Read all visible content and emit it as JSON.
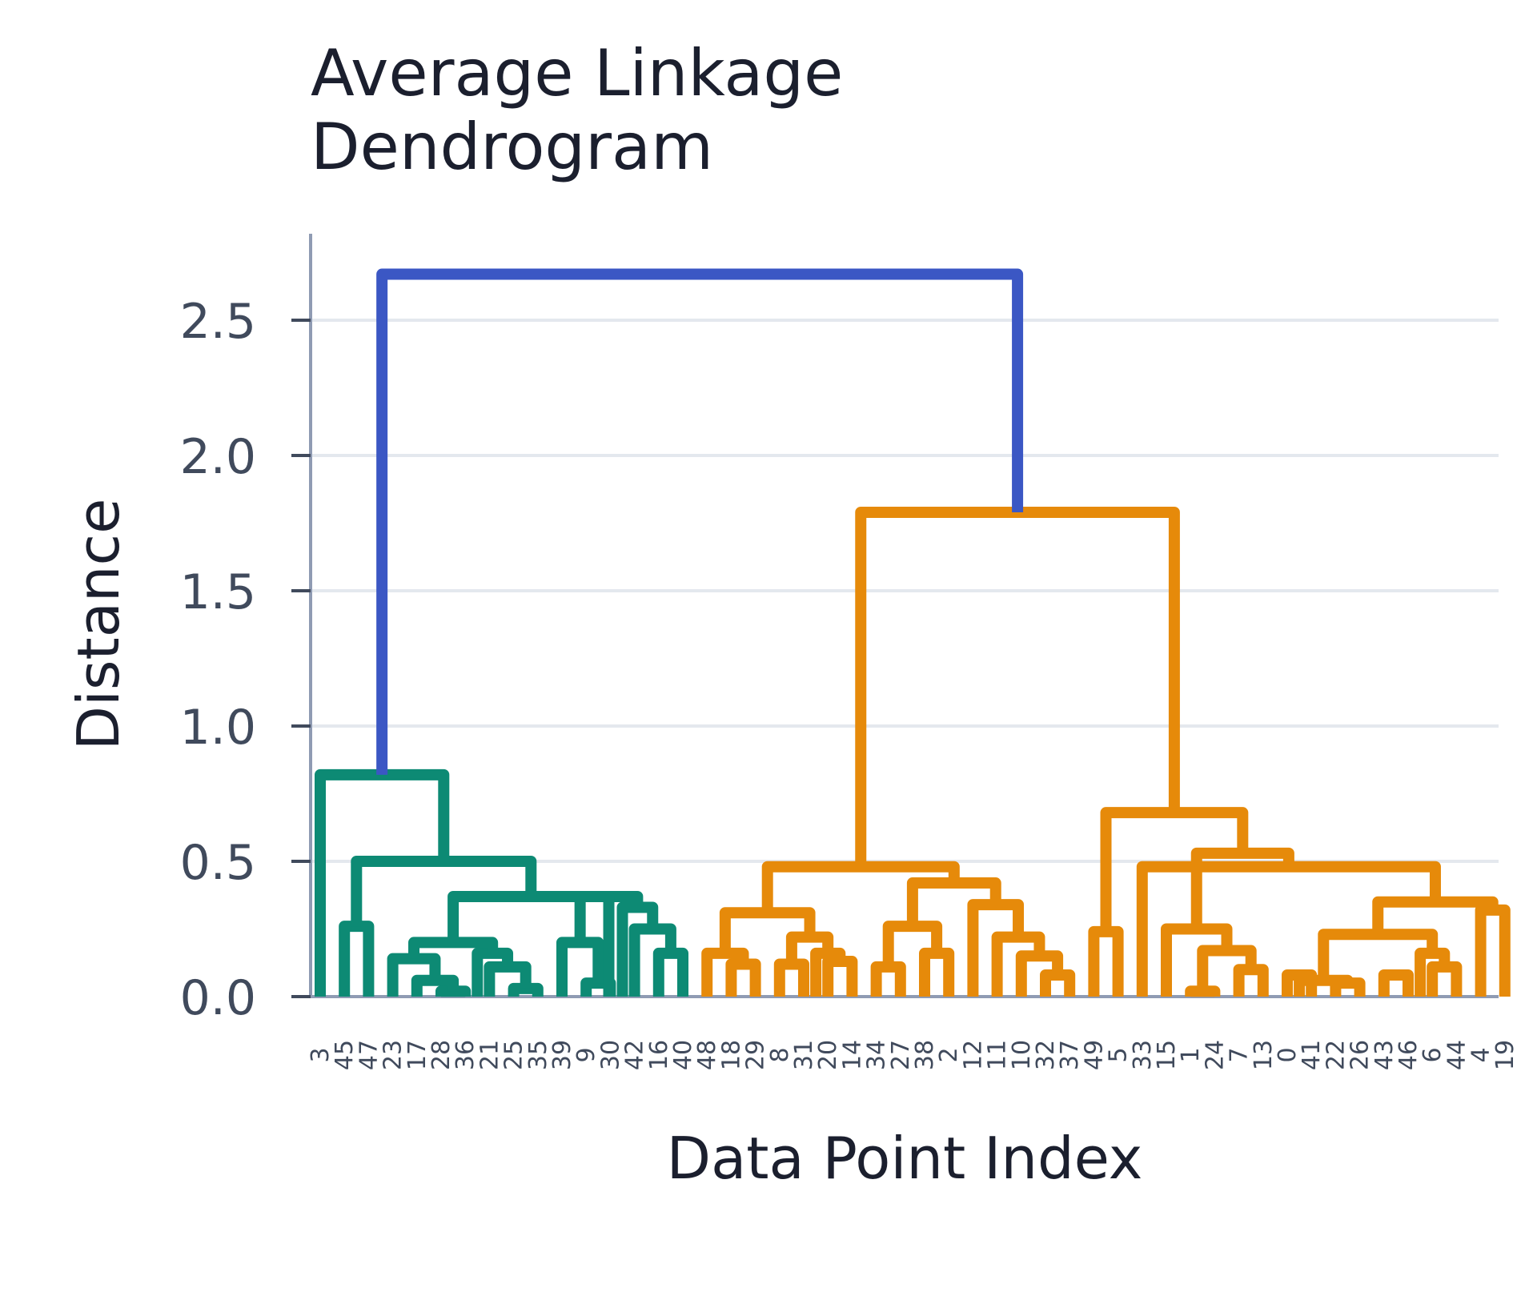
{
  "chart_data": {
    "type": "dendrogram",
    "title": [
      "Average Linkage",
      "Dendrogram"
    ],
    "xlabel": "Data Point Index",
    "ylabel": "Distance",
    "ylim": [
      0,
      2.8
    ],
    "yticks": [
      0.0,
      0.5,
      1.0,
      1.5,
      2.0,
      2.5
    ],
    "ytick_labels": [
      "0.0",
      "0.5",
      "1.0",
      "1.5",
      "2.0",
      "2.5"
    ],
    "grid": true,
    "colors": {
      "teal": "#0d8a74",
      "orange": "#e68a0a",
      "blue": "#3b57c4",
      "axis": "#8f9bb3",
      "grid": "#e4e8ee"
    },
    "leaves": [
      "3",
      "45",
      "47",
      "23",
      "17",
      "28",
      "36",
      "21",
      "25",
      "35",
      "39",
      "9",
      "30",
      "42",
      "16",
      "40",
      "48",
      "18",
      "29",
      "8",
      "31",
      "20",
      "14",
      "34",
      "27",
      "38",
      "2",
      "12",
      "11",
      "10",
      "32",
      "37",
      "49",
      "5",
      "33",
      "15",
      "1",
      "24",
      "7",
      "13",
      "0",
      "41",
      "22",
      "26",
      "43",
      "46",
      "6",
      "44",
      "4",
      "19"
    ],
    "links": [
      {
        "x": [
          1,
          2
        ],
        "h": 0.26,
        "color": "teal"
      },
      {
        "x": [
          5,
          6
        ],
        "h": 0.02,
        "color": "teal"
      },
      {
        "x": [
          4,
          5.5
        ],
        "h": 0.06,
        "color": "teal"
      },
      {
        "x": [
          3,
          4.75
        ],
        "h": 0.14,
        "color": "teal"
      },
      {
        "x": [
          8,
          9
        ],
        "h": 0.03,
        "color": "teal"
      },
      {
        "x": [
          7,
          8.5
        ],
        "h": 0.11,
        "color": "teal"
      },
      {
        "x": [
          6.5,
          7.75
        ],
        "h": 0.16,
        "color": "teal"
      },
      {
        "x": [
          3.875,
          7.125
        ],
        "h": 0.2,
        "color": "teal"
      },
      {
        "x": [
          11,
          12
        ],
        "h": 0.05,
        "color": "teal"
      },
      {
        "x": [
          10,
          11.5
        ],
        "h": 0.2,
        "color": "teal"
      },
      {
        "x": [
          14,
          15
        ],
        "h": 0.16,
        "color": "teal"
      },
      {
        "x": [
          13,
          14.5
        ],
        "h": 0.25,
        "color": "teal"
      },
      {
        "x": [
          12.5,
          13.75
        ],
        "h": 0.33,
        "color": "teal"
      },
      {
        "x": [
          10.75,
          13.125
        ],
        "h": 0.37,
        "color": "teal"
      },
      {
        "x": [
          5.5,
          11.9375
        ],
        "h": 0.37,
        "color": "teal"
      },
      {
        "x": [
          1.5,
          8.71875
        ],
        "h": 0.5,
        "color": "teal"
      },
      {
        "x": [
          0,
          5.109375
        ],
        "h": 0.82,
        "color": "teal"
      },
      {
        "x": [
          17,
          18
        ],
        "h": 0.12,
        "color": "orange"
      },
      {
        "x": [
          16,
          17.5
        ],
        "h": 0.16,
        "color": "orange"
      },
      {
        "x": [
          19,
          20
        ],
        "h": 0.12,
        "color": "orange"
      },
      {
        "x": [
          21,
          22
        ],
        "h": 0.13,
        "color": "orange"
      },
      {
        "x": [
          20.5,
          21.5
        ],
        "h": 0.16,
        "color": "orange"
      },
      {
        "x": [
          19.5,
          21.0
        ],
        "h": 0.22,
        "color": "orange"
      },
      {
        "x": [
          16.75,
          20.25
        ],
        "h": 0.31,
        "color": "orange"
      },
      {
        "x": [
          23,
          24
        ],
        "h": 0.11,
        "color": "orange"
      },
      {
        "x": [
          25,
          26
        ],
        "h": 0.16,
        "color": "orange"
      },
      {
        "x": [
          23.5,
          25.5
        ],
        "h": 0.26,
        "color": "orange"
      },
      {
        "x": [
          30,
          31
        ],
        "h": 0.08,
        "color": "orange"
      },
      {
        "x": [
          29,
          30.5
        ],
        "h": 0.15,
        "color": "orange"
      },
      {
        "x": [
          28,
          29.75
        ],
        "h": 0.22,
        "color": "orange"
      },
      {
        "x": [
          27,
          28.875
        ],
        "h": 0.34,
        "color": "orange"
      },
      {
        "x": [
          24.5,
          27.9375
        ],
        "h": 0.42,
        "color": "orange"
      },
      {
        "x": [
          18.5,
          26.21875
        ],
        "h": 0.48,
        "color": "orange"
      },
      {
        "x": [
          32,
          33
        ],
        "h": 0.24,
        "color": "orange"
      },
      {
        "x": [
          36,
          37
        ],
        "h": 0.02,
        "color": "orange"
      },
      {
        "x": [
          38,
          39
        ],
        "h": 0.1,
        "color": "orange"
      },
      {
        "x": [
          36.5,
          38.5
        ],
        "h": 0.17,
        "color": "orange"
      },
      {
        "x": [
          35,
          37.5
        ],
        "h": 0.25,
        "color": "orange"
      },
      {
        "x": [
          40,
          41
        ],
        "h": 0.08,
        "color": "orange"
      },
      {
        "x": [
          42,
          43
        ],
        "h": 0.05,
        "color": "orange"
      },
      {
        "x": [
          40.5,
          42.5
        ],
        "h": 0.06,
        "color": "orange"
      },
      {
        "x": [
          44,
          45
        ],
        "h": 0.08,
        "color": "orange"
      },
      {
        "x": [
          46,
          47
        ],
        "h": 0.11,
        "color": "orange"
      },
      {
        "x": [
          45.5,
          46.5
        ],
        "h": 0.16,
        "color": "orange"
      },
      {
        "x": [
          41.5,
          46.0
        ],
        "h": 0.23,
        "color": "orange"
      },
      {
        "x": [
          48,
          49
        ],
        "h": 0.32,
        "color": "orange"
      },
      {
        "x": [
          43.75,
          48.5
        ],
        "h": 0.35,
        "color": "orange"
      },
      {
        "x": [
          34,
          46.125
        ],
        "h": 0.48,
        "color": "orange"
      },
      {
        "x": [
          36.25,
          40.0625
        ],
        "h": 0.53,
        "color": "orange"
      },
      {
        "x": [
          32.5,
          38.15625
        ],
        "h": 0.68,
        "color": "orange"
      },
      {
        "x": [
          22.359375,
          35.328125
        ],
        "h": 1.79,
        "color": "orange"
      },
      {
        "x": [
          2.5546875,
          28.84375
        ],
        "h": 2.67,
        "color": "blue"
      }
    ]
  }
}
